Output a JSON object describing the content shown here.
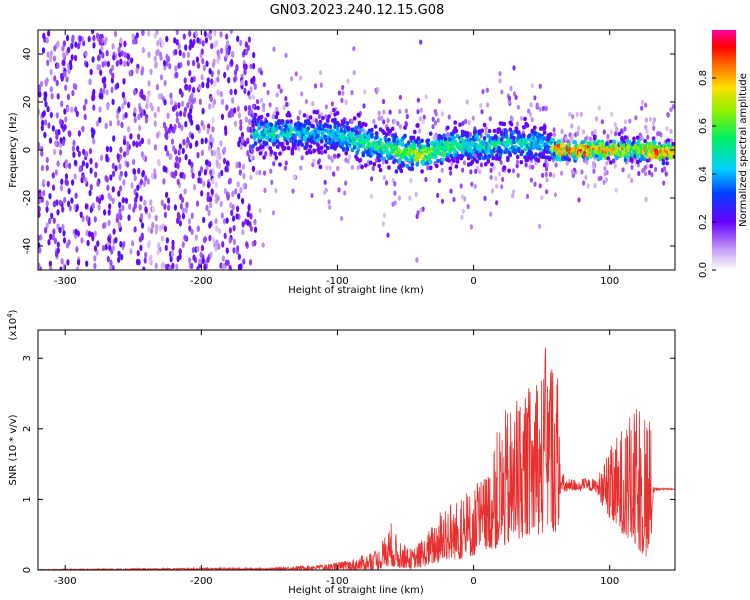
{
  "title": "GN03.2023.240.12.15.G08",
  "chart_data": [
    {
      "type": "heatmap",
      "xlabel": "Height of straight line (km)",
      "ylabel": "Frequency (Hz)",
      "xlim": [
        -320,
        148
      ],
      "ylim": [
        -50,
        50
      ],
      "x_ticks": [
        -300,
        -200,
        -100,
        0,
        100
      ],
      "y_ticks": [
        -40,
        -20,
        0,
        20,
        40
      ],
      "colorbar": {
        "label": "Normalized spectral amplitude",
        "range": [
          0.0,
          1.0
        ],
        "ticks": [
          0.0,
          0.2,
          0.4,
          0.6,
          0.8
        ],
        "tick_labels": [
          "0.0",
          "0.2",
          "0.4",
          "0.6",
          "0.8"
        ]
      },
      "ridge": {
        "x": [
          -160,
          -140,
          -120,
          -100,
          -80,
          -60,
          -40,
          -20,
          0,
          20,
          40,
          55,
          60,
          80,
          100,
          120,
          135,
          148
        ],
        "frequency": [
          7,
          7,
          7,
          6,
          3,
          0,
          -2,
          1,
          2,
          2,
          3,
          2,
          0,
          0,
          0,
          0,
          -1,
          -1
        ],
        "amplitude": [
          0.5,
          0.5,
          0.45,
          0.45,
          0.55,
          0.6,
          0.7,
          0.6,
          0.5,
          0.5,
          0.5,
          0.4,
          0.9,
          0.95,
          0.9,
          0.7,
          0.95,
          0.8
        ]
      },
      "noise_region_x": [
        -320,
        -160
      ]
    },
    {
      "type": "line",
      "color": "#e8312f",
      "xlabel": "Height of straight line (km)",
      "ylabel": "SNR (10 * v/v)",
      "y_multiplier": "(x10^4)",
      "xlim": [
        -320,
        148
      ],
      "ylim": [
        0,
        3.4
      ],
      "x_ticks": [
        -300,
        -200,
        -100,
        0,
        100
      ],
      "y_ticks": [
        0,
        1,
        2,
        3
      ],
      "envelope": {
        "x": [
          -320,
          -200,
          -150,
          -110,
          -90,
          -70,
          -60,
          -55,
          -45,
          -35,
          -20,
          -10,
          0,
          10,
          20,
          30,
          40,
          50,
          55,
          62,
          64,
          70,
          80,
          90,
          95,
          100,
          110,
          120,
          125,
          130,
          132,
          135,
          148
        ],
        "y_max": [
          0.01,
          0.03,
          0.03,
          0.08,
          0.15,
          0.3,
          0.7,
          0.4,
          0.3,
          0.5,
          1.0,
          1.0,
          1.2,
          1.4,
          2.2,
          2.4,
          2.6,
          2.9,
          3.4,
          2.8,
          1.4,
          1.3,
          1.3,
          1.3,
          1.5,
          1.7,
          2.1,
          2.3,
          2.5,
          2.2,
          1.2,
          1.17,
          1.15
        ],
        "y_min": [
          0,
          0,
          0,
          0,
          0,
          0.01,
          0.05,
          0.03,
          0.02,
          0.05,
          0.15,
          0.15,
          0.2,
          0.3,
          0.3,
          0.4,
          0.5,
          0.5,
          0.6,
          0.5,
          1.1,
          1.1,
          1.15,
          1.1,
          0.9,
          0.7,
          0.5,
          0.3,
          0.2,
          0.1,
          1.1,
          1.13,
          1.14
        ]
      }
    }
  ]
}
